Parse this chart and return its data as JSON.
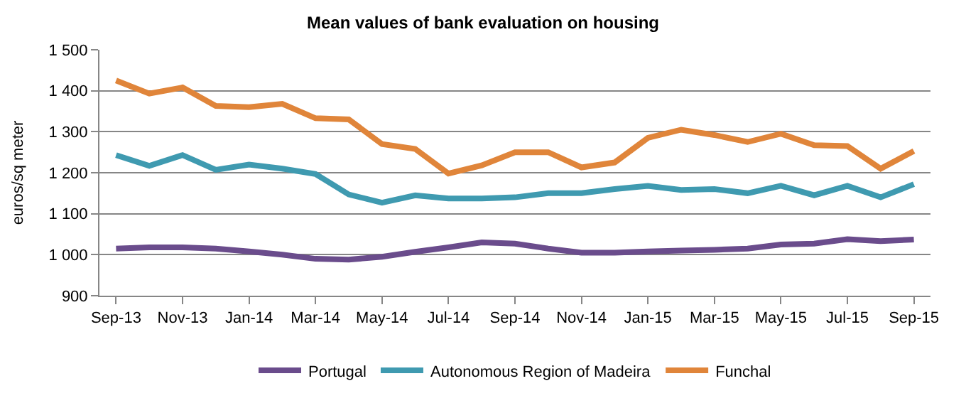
{
  "chart_data": {
    "type": "line",
    "title": "Mean values of bank evaluation on housing",
    "ylabel": "euros/sq meter",
    "categories": [
      "Sep-13",
      null,
      "Nov-13",
      null,
      "Jan-14",
      null,
      "Mar-14",
      null,
      "May-14",
      null,
      "Jul-14",
      null,
      "Sep-14",
      null,
      "Nov-14",
      null,
      "Jan-15",
      null,
      "Mar-15",
      null,
      "May-15",
      null,
      "Jul-15",
      null,
      "Sep-15"
    ],
    "series": [
      {
        "name": "Portugal",
        "color": "#6a4c8c",
        "values": [
          1015,
          1018,
          1018,
          1015,
          1008,
          1000,
          990,
          988,
          995,
          1007,
          1018,
          1030,
          1027,
          1015,
          1005,
          1005,
          1008,
          1010,
          1012,
          1015,
          1025,
          1027,
          1038,
          1033,
          1037
        ]
      },
      {
        "name": "Autonomous Region of Madeira",
        "color": "#3f9ab0",
        "values": [
          1243,
          1217,
          1243,
          1207,
          1220,
          1210,
          1197,
          1147,
          1127,
          1145,
          1137,
          1137,
          1140,
          1150,
          1150,
          1160,
          1168,
          1158,
          1160,
          1150,
          1168,
          1145,
          1168,
          1140,
          1172
        ]
      },
      {
        "name": "Funchal",
        "color": "#e0853a",
        "values": [
          1425,
          1393,
          1408,
          1363,
          1360,
          1368,
          1333,
          1330,
          1270,
          1258,
          1198,
          1218,
          1250,
          1250,
          1213,
          1225,
          1285,
          1305,
          1292,
          1275,
          1295,
          1267,
          1265,
          1210,
          1253
        ]
      }
    ],
    "ylim": [
      900,
      1500
    ],
    "yticks": [
      900,
      {
        "value": 1000,
        "label": "1 000"
      },
      {
        "value": 1100,
        "label": "1 100"
      },
      {
        "value": 1200,
        "label": "1 200"
      },
      {
        "value": 1300,
        "label": "1 300"
      },
      {
        "value": 1400,
        "label": "1 400"
      },
      {
        "value": 1500,
        "label": "1 500"
      }
    ],
    "grid": "y",
    "legend": "bottom",
    "marker": "none",
    "line_style": "solid"
  }
}
